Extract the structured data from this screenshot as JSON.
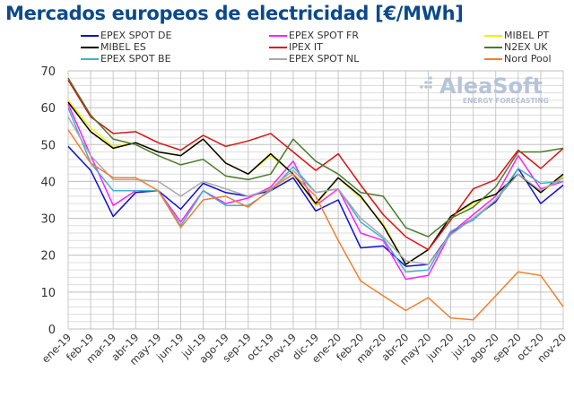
{
  "chart_data": {
    "type": "line",
    "title": "Mercados europeos de electricidad [€/MWh]",
    "watermark": {
      "brand": "AleaSoft",
      "tagline": "ENERGY FORECASTING"
    },
    "categories": [
      "ene-19",
      "feb-19",
      "mar-19",
      "abr-19",
      "may-19",
      "jun-19",
      "jul-19",
      "ago-19",
      "sep-19",
      "oct-19",
      "nov-19",
      "dic-19",
      "ene-20",
      "feb-20",
      "mar-20",
      "abr-20",
      "may-20",
      "jun-20",
      "jul-20",
      "ago-20",
      "sep-20",
      "oct-20",
      "nov-20"
    ],
    "ylim": [
      0,
      70
    ],
    "yticks": [
      0,
      10,
      20,
      30,
      40,
      50,
      60,
      70
    ],
    "grid": true,
    "legend_position": "top",
    "series": [
      {
        "name": "EPEX SPOT DE",
        "color": "#1010d0",
        "values": [
          49.5,
          43,
          30.5,
          37,
          37.5,
          32.5,
          39.5,
          37,
          36,
          37.5,
          41,
          32,
          35,
          22,
          22.5,
          17,
          17.5,
          26,
          30,
          34.5,
          43.5,
          34,
          39
        ]
      },
      {
        "name": "EPEX SPOT FR",
        "color": "#ff20ff",
        "values": [
          61,
          47,
          33.5,
          37.5,
          37.5,
          29,
          37.5,
          34,
          35.5,
          38.5,
          45.5,
          33.5,
          38,
          26,
          24,
          13.5,
          14.5,
          26,
          31,
          36,
          47,
          38,
          40
        ]
      },
      {
        "name": "MIBEL PT",
        "color": "#f0f000",
        "values": [
          62,
          54.5,
          49.5,
          50.5,
          48,
          47,
          51.5,
          45,
          42,
          47,
          42,
          33.5,
          41,
          35.5,
          28.5,
          17.5,
          21.5,
          30.5,
          34,
          36.5,
          42,
          37,
          41.5
        ]
      },
      {
        "name": "MIBEL ES",
        "color": "#000000",
        "values": [
          61.5,
          53.5,
          49,
          50.5,
          48,
          47,
          51.5,
          45,
          42,
          47.5,
          42,
          34,
          41,
          36,
          28,
          17.5,
          21.5,
          30.5,
          34.5,
          36.5,
          42,
          37,
          42
        ]
      },
      {
        "name": "IPEX IT",
        "color": "#e01010",
        "values": [
          67.5,
          57.5,
          53,
          53.5,
          50.5,
          48.5,
          52.5,
          49.5,
          51,
          53,
          48,
          43,
          47.5,
          39,
          31,
          25,
          21.5,
          29.5,
          38,
          40.5,
          48.5,
          43.5,
          49
        ]
      },
      {
        "name": "N2EX UK",
        "color": "#4a7a2a",
        "values": [
          68,
          58,
          51.5,
          50,
          47,
          44.5,
          46,
          41.5,
          40.5,
          42,
          51.5,
          45.5,
          42,
          37,
          36,
          27.5,
          25,
          30,
          33,
          38.5,
          48,
          48,
          49
        ]
      },
      {
        "name": "EPEX SPOT BE",
        "color": "#40b0d0",
        "values": [
          60,
          45,
          37.5,
          37.5,
          37.5,
          28,
          37.5,
          33.5,
          33.5,
          37.5,
          44,
          37,
          38,
          29,
          24.5,
          15.5,
          16,
          26.5,
          29.5,
          35,
          43.5,
          39.5,
          40
        ]
      },
      {
        "name": "EPEX SPOT NL",
        "color": "#a8a8a8",
        "values": [
          57.5,
          47,
          40.5,
          40.5,
          40,
          36,
          40,
          38,
          36,
          38,
          43,
          37,
          38,
          30,
          25,
          18.5,
          17.5,
          25.5,
          30,
          35,
          42,
          37.5,
          41
        ]
      },
      {
        "name": "Nord Pool",
        "color": "#f08030",
        "values": [
          54,
          45,
          41,
          41,
          37.5,
          27.5,
          35,
          36,
          33,
          38,
          42,
          36,
          24,
          13,
          9,
          5,
          8.5,
          3,
          2.5,
          9,
          15.5,
          14.5,
          6
        ]
      }
    ]
  }
}
